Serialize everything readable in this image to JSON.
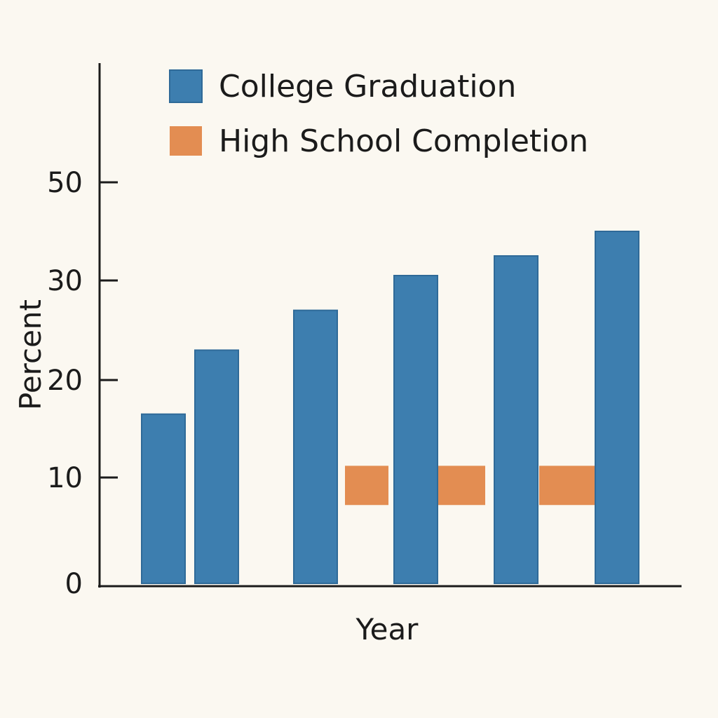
{
  "chart_data": {
    "type": "bar",
    "xlabel": "Year",
    "ylabel": "Percent",
    "y_ticks": [
      0,
      10,
      20,
      30,
      50
    ],
    "legend_position": "top",
    "grid": false,
    "series": [
      {
        "name": "College Graduation",
        "color": "#3d7eaf",
        "values": [
          16.5,
          23,
          27,
          31,
          35,
          40
        ]
      },
      {
        "name": "High School Completion",
        "color": "#e38d52",
        "ranges": [
          null,
          null,
          [
            7.4,
            11.2
          ],
          [
            7.4,
            11.2
          ],
          [
            7.4,
            11.2
          ],
          null
        ]
      }
    ]
  }
}
